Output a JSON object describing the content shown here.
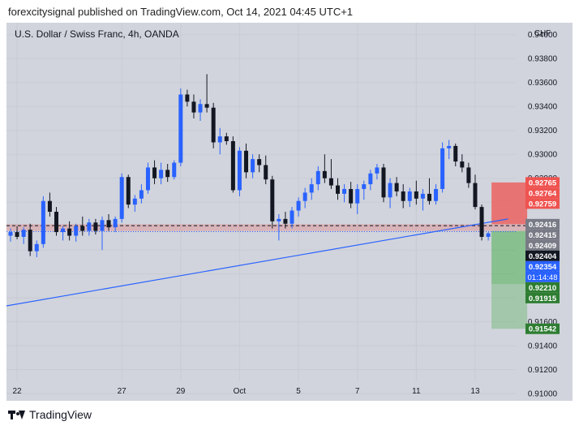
{
  "header": {
    "text": "forexcitysignal published on TradingView.com, Oct 14, 2021 04:45 UTC+1"
  },
  "footer": {
    "brand": "TradingView"
  },
  "colors": {
    "bull": "#2962ff",
    "bear": "#131722",
    "stop_zone": "#ef5350",
    "target_zone": "#4caf50",
    "trendline": "#2962ff",
    "background": "#d1d4dc"
  },
  "chart_data": {
    "type": "candlestick",
    "title": "U.S. Dollar / Swiss Franc, 4h, OANDA",
    "currency": "CHF",
    "ylim": [
      0.9094,
      0.941
    ],
    "y_ticks": [
      "0.94000",
      "0.93800",
      "0.93600",
      "0.93400",
      "0.93200",
      "0.93000",
      "0.92800",
      "0.92600",
      "0.92400",
      "0.92200",
      "0.92000",
      "0.91800",
      "0.91600",
      "0.91400",
      "0.91200",
      "0.91000"
    ],
    "x_ticks": [
      {
        "label": "22",
        "index": 1
      },
      {
        "label": "27",
        "index": 17
      },
      {
        "label": "29",
        "index": 26
      },
      {
        "label": "Oct",
        "index": 35
      },
      {
        "label": "5",
        "index": 44
      },
      {
        "label": "7",
        "index": 53
      },
      {
        "label": "11",
        "index": 62
      },
      {
        "label": "13",
        "index": 71
      }
    ],
    "candles": [
      [
        0.9232,
        0.9238,
        0.9227,
        0.9235
      ],
      [
        0.9235,
        0.924,
        0.9229,
        0.9231
      ],
      [
        0.9231,
        0.9239,
        0.9225,
        0.9237
      ],
      [
        0.9237,
        0.9242,
        0.9215,
        0.9219
      ],
      [
        0.9219,
        0.9228,
        0.9214,
        0.9225
      ],
      [
        0.9225,
        0.9265,
        0.9222,
        0.9261
      ],
      [
        0.9261,
        0.9268,
        0.9248,
        0.9252
      ],
      [
        0.9252,
        0.9256,
        0.9232,
        0.9235
      ],
      [
        0.9235,
        0.924,
        0.9228,
        0.9238
      ],
      [
        0.9238,
        0.9244,
        0.9228,
        0.9232
      ],
      [
        0.9232,
        0.9242,
        0.9227,
        0.924
      ],
      [
        0.924,
        0.9248,
        0.9232,
        0.9236
      ],
      [
        0.9236,
        0.9246,
        0.9232,
        0.9243
      ],
      [
        0.9243,
        0.9246,
        0.9233,
        0.9236
      ],
      [
        0.9236,
        0.9248,
        0.922,
        0.9245
      ],
      [
        0.9245,
        0.925,
        0.9236,
        0.9239
      ],
      [
        0.9239,
        0.9248,
        0.9235,
        0.9246
      ],
      [
        0.9246,
        0.9284,
        0.9243,
        0.9281
      ],
      [
        0.9281,
        0.9283,
        0.9255,
        0.9258
      ],
      [
        0.9258,
        0.9266,
        0.9252,
        0.9263
      ],
      [
        0.9263,
        0.9275,
        0.9259,
        0.927
      ],
      [
        0.927,
        0.9293,
        0.9267,
        0.9289
      ],
      [
        0.9289,
        0.9295,
        0.9275,
        0.928
      ],
      [
        0.928,
        0.9293,
        0.9275,
        0.9287
      ],
      [
        0.9287,
        0.9292,
        0.9277,
        0.9281
      ],
      [
        0.9281,
        0.9295,
        0.9279,
        0.9293
      ],
      [
        0.9293,
        0.9355,
        0.929,
        0.935
      ],
      [
        0.935,
        0.9354,
        0.934,
        0.9344
      ],
      [
        0.9344,
        0.935,
        0.933,
        0.9335
      ],
      [
        0.9335,
        0.9346,
        0.9328,
        0.9342
      ],
      [
        0.9342,
        0.9367,
        0.9335,
        0.9339
      ],
      [
        0.9339,
        0.9343,
        0.9305,
        0.931
      ],
      [
        0.931,
        0.9322,
        0.93,
        0.9315
      ],
      [
        0.9315,
        0.9318,
        0.9308,
        0.9311
      ],
      [
        0.9311,
        0.9315,
        0.9268,
        0.927
      ],
      [
        0.927,
        0.9306,
        0.9265,
        0.9303
      ],
      [
        0.9303,
        0.9309,
        0.928,
        0.9285
      ],
      [
        0.9285,
        0.93,
        0.928,
        0.9296
      ],
      [
        0.9296,
        0.93,
        0.9285,
        0.9291
      ],
      [
        0.9291,
        0.9299,
        0.9275,
        0.9279
      ],
      [
        0.9279,
        0.9282,
        0.9238,
        0.9244
      ],
      [
        0.9244,
        0.925,
        0.9228,
        0.9246
      ],
      [
        0.9246,
        0.9252,
        0.9238,
        0.9242
      ],
      [
        0.9242,
        0.9256,
        0.9238,
        0.9253
      ],
      [
        0.9253,
        0.9264,
        0.9248,
        0.9261
      ],
      [
        0.9261,
        0.9272,
        0.9255,
        0.9268
      ],
      [
        0.9268,
        0.928,
        0.9262,
        0.9275
      ],
      [
        0.9275,
        0.929,
        0.927,
        0.9286
      ],
      [
        0.9286,
        0.93,
        0.9276,
        0.928
      ],
      [
        0.928,
        0.9296,
        0.9271,
        0.9274
      ],
      [
        0.9274,
        0.928,
        0.9262,
        0.9267
      ],
      [
        0.9267,
        0.9275,
        0.926,
        0.9271
      ],
      [
        0.9271,
        0.9277,
        0.9255,
        0.9259
      ],
      [
        0.9259,
        0.9275,
        0.925,
        0.9271
      ],
      [
        0.9271,
        0.9278,
        0.9262,
        0.9275
      ],
      [
        0.9275,
        0.9287,
        0.927,
        0.9284
      ],
      [
        0.9284,
        0.9292,
        0.9279,
        0.9289
      ],
      [
        0.9289,
        0.9292,
        0.926,
        0.9264
      ],
      [
        0.9264,
        0.928,
        0.9255,
        0.9276
      ],
      [
        0.9276,
        0.9281,
        0.9265,
        0.9269
      ],
      [
        0.9269,
        0.9275,
        0.9255,
        0.9261
      ],
      [
        0.9261,
        0.9272,
        0.9256,
        0.9269
      ],
      [
        0.9269,
        0.9278,
        0.9258,
        0.9263
      ],
      [
        0.9263,
        0.9271,
        0.9253,
        0.9267
      ],
      [
        0.9267,
        0.928,
        0.9258,
        0.9261
      ],
      [
        0.9261,
        0.9275,
        0.9258,
        0.9271
      ],
      [
        0.9271,
        0.931,
        0.9268,
        0.9305
      ],
      [
        0.9305,
        0.9312,
        0.9296,
        0.9307
      ],
      [
        0.9307,
        0.9309,
        0.929,
        0.9294
      ],
      [
        0.9294,
        0.93,
        0.9285,
        0.9289
      ],
      [
        0.9289,
        0.9293,
        0.9272,
        0.9276
      ],
      [
        0.9276,
        0.9283,
        0.9254,
        0.9256
      ],
      [
        0.9256,
        0.9258,
        0.9228,
        0.9231
      ],
      [
        0.9231,
        0.9235,
        0.9228,
        0.9234
      ]
    ],
    "last_price": {
      "value": 0.92354,
      "countdown": "01:14:48"
    },
    "entry_zone": [
      0.92359,
      0.92416
    ],
    "stop_zone": [
      0.92416,
      0.92765
    ],
    "target_zone": [
      0.91542,
      0.92359
    ],
    "target_1_line": 0.91915,
    "entry_line": 0.92404,
    "trendline": {
      "from": {
        "index": -1,
        "price": 0.9173
      },
      "to": {
        "index": 76,
        "price": 0.9246
      }
    },
    "price_labels": [
      {
        "text": "0.92765",
        "value": 0.92765,
        "kind": "stop"
      },
      {
        "text": "0.92764",
        "value": 0.92764,
        "kind": "stop"
      },
      {
        "text": "0.92759",
        "value": 0.92759,
        "kind": "stop"
      },
      {
        "text": "0.92416",
        "value": 0.92416,
        "kind": "gray"
      },
      {
        "text": "0.92415",
        "value": 0.92415,
        "kind": "gray"
      },
      {
        "text": "0.92409",
        "value": 0.92409,
        "kind": "gray"
      },
      {
        "text": "0.92404",
        "value": 0.92404,
        "kind": "dark"
      },
      {
        "text": "0.92354",
        "value": 0.92354,
        "kind": "blue"
      },
      {
        "text": "0.92210",
        "value": 0.9221,
        "kind": "green"
      },
      {
        "text": "0.91915",
        "value": 0.91915,
        "kind": "green"
      },
      {
        "text": "0.91542",
        "value": 0.91542,
        "kind": "green"
      }
    ]
  }
}
